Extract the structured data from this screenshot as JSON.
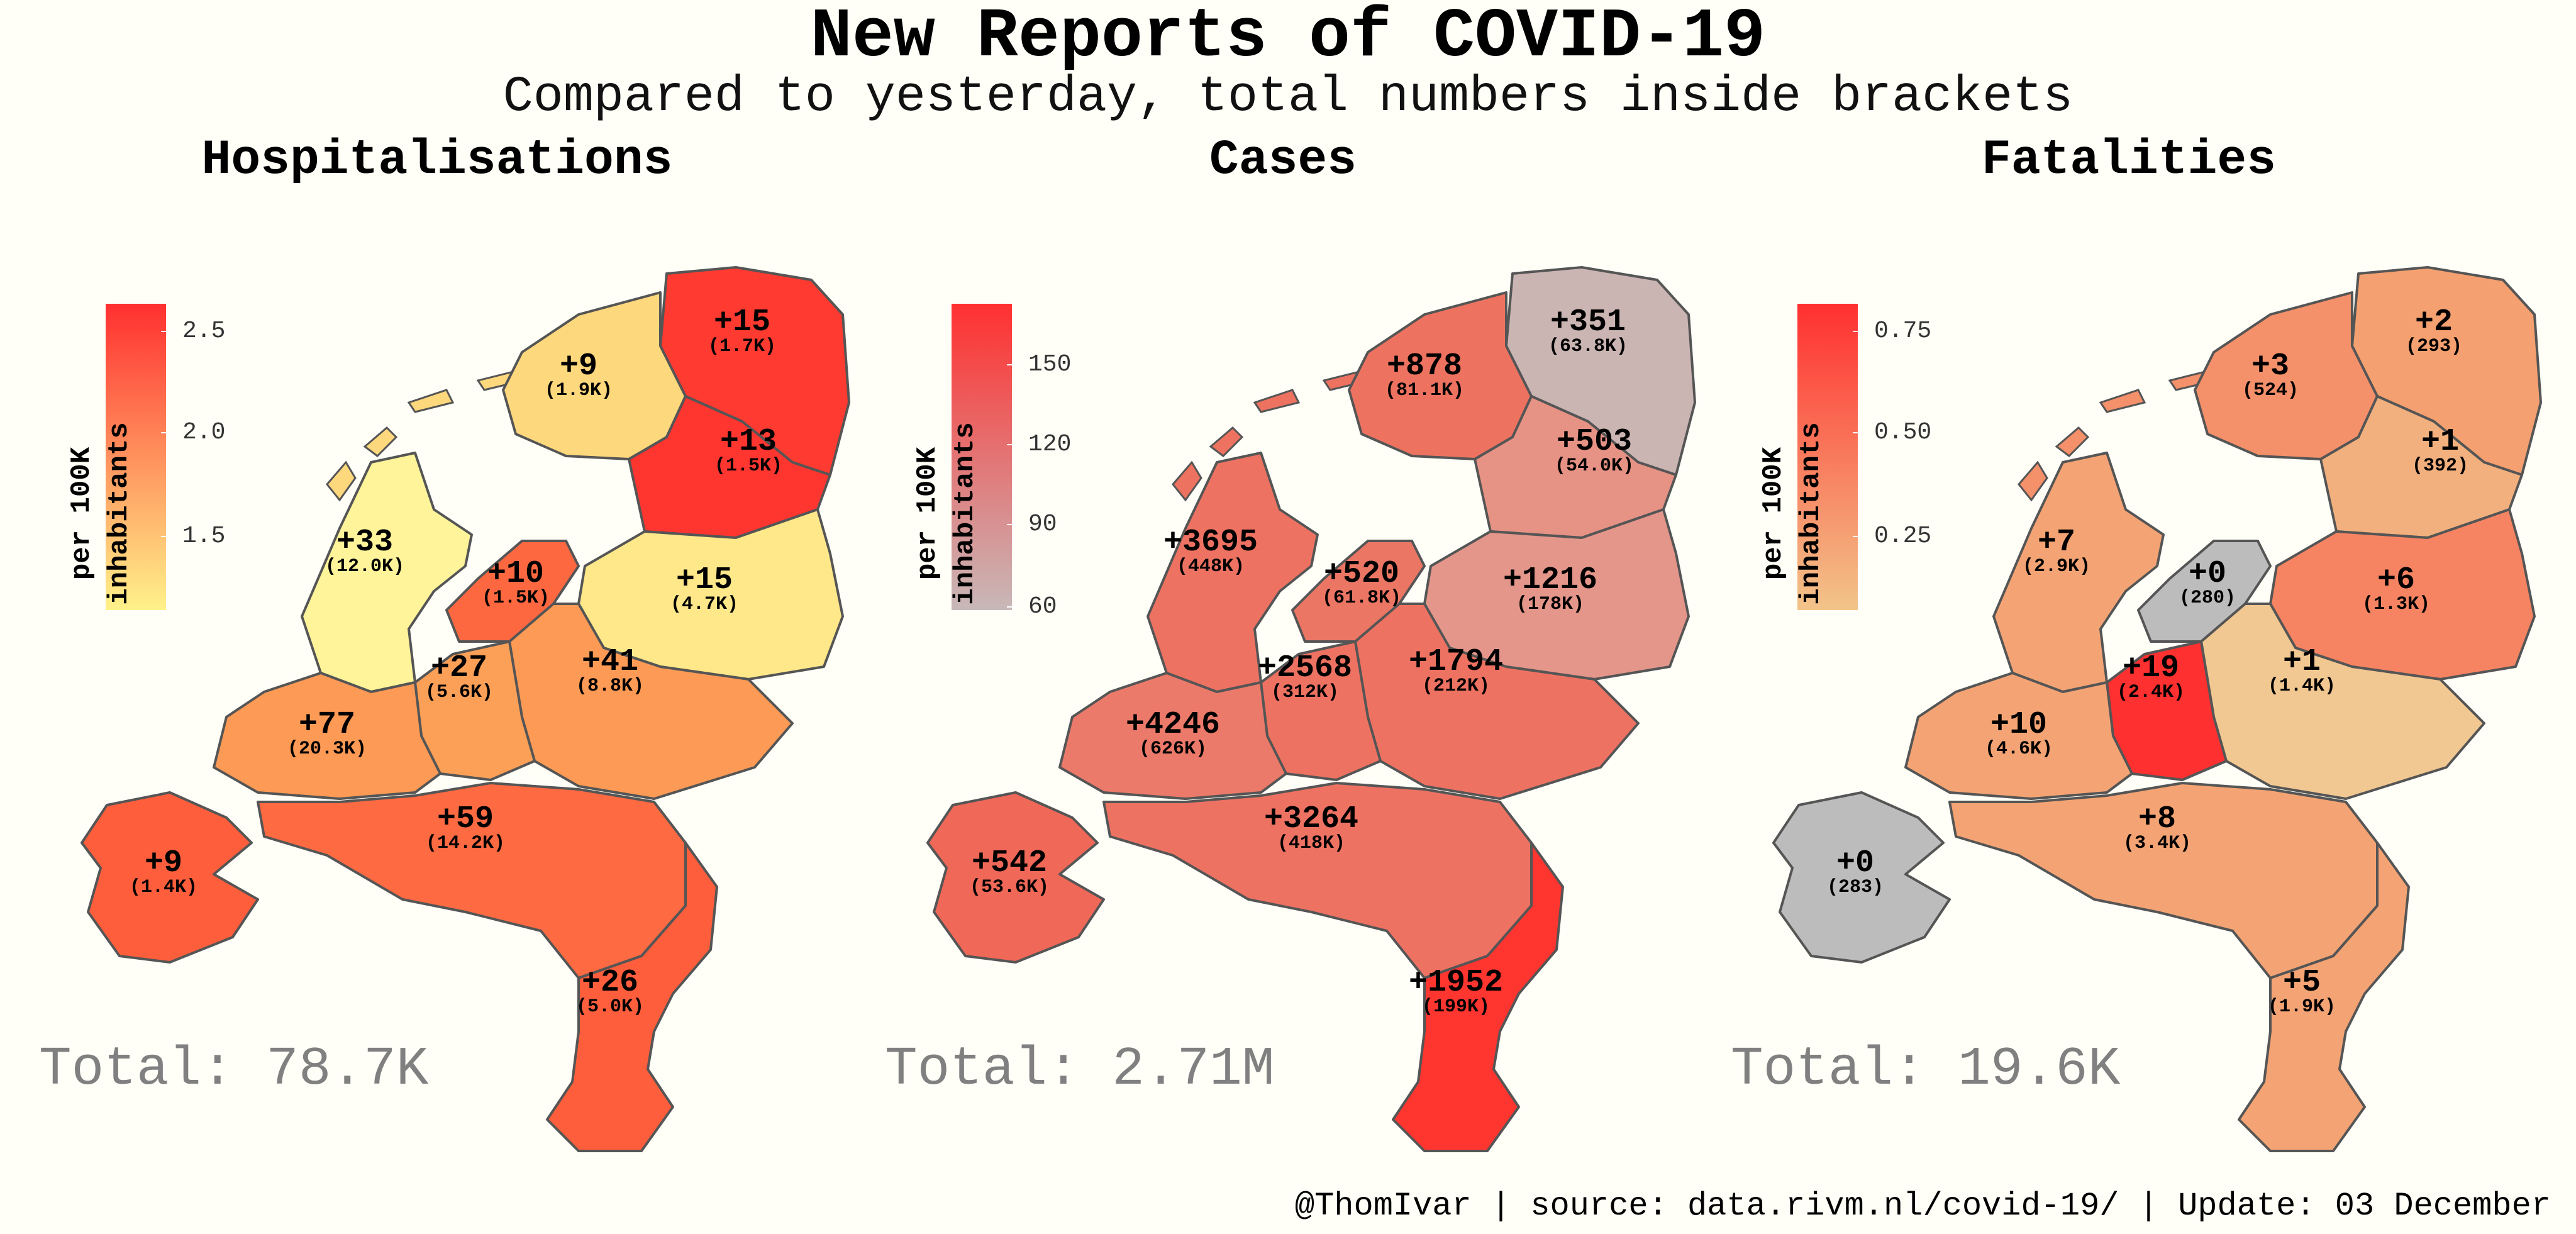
{
  "title": "New Reports of COVID-19",
  "subtitle": "Compared to yesterday, total numbers inside brackets",
  "footer": "@ThomIvar | source: data.rivm.nl/covid-19/ | Update: 03 December",
  "panels": [
    {
      "title": "Hospitalisations",
      "legend_title": "per 100K inhabitants",
      "legend_ticks": [
        "2.5",
        "2.0",
        "1.5"
      ],
      "legend_colors": [
        "#ff3030",
        "#fff28a"
      ],
      "total": "Total: 78.7K",
      "regions": [
        {
          "delta": "+15",
          "total": "(1.7K)",
          "color": "#ff3a30"
        },
        {
          "delta": "+9",
          "total": "(1.9K)",
          "color": "#fed87c"
        },
        {
          "delta": "+13",
          "total": "(1.5K)",
          "color": "#ff3530"
        },
        {
          "delta": "+33",
          "total": "(12.0K)",
          "color": "#fff49a"
        },
        {
          "delta": "+10",
          "total": "(1.5K)",
          "color": "#fe6840"
        },
        {
          "delta": "+15",
          "total": "(4.7K)",
          "color": "#ffe88a"
        },
        {
          "delta": "+41",
          "total": "(8.8K)",
          "color": "#fd9a55"
        },
        {
          "delta": "+27",
          "total": "(5.6K)",
          "color": "#fca058"
        },
        {
          "delta": "+77",
          "total": "(20.3K)",
          "color": "#fd9a55"
        },
        {
          "delta": "+59",
          "total": "(14.2K)",
          "color": "#fe6a42"
        },
        {
          "delta": "+9",
          "total": "(1.4K)",
          "color": "#fe5e3c"
        },
        {
          "delta": "+26",
          "total": "(5.0K)",
          "color": "#fe5e3c"
        }
      ]
    },
    {
      "title": "Cases",
      "legend_title": "per 100K inhabitants",
      "legend_ticks": [
        "150",
        "120",
        "90",
        "60"
      ],
      "legend_colors": [
        "#ff3030",
        "#c8b8b8"
      ],
      "total": "Total: 2.71M",
      "regions": [
        {
          "delta": "+351",
          "total": "(63.8K)",
          "color": "#cbb5b3"
        },
        {
          "delta": "+878",
          "total": "(81.1K)",
          "color": "#ee7260"
        },
        {
          "delta": "+503",
          "total": "(54.0K)",
          "color": "#e69284"
        },
        {
          "delta": "+3695",
          "total": "(448K)",
          "color": "#ee7262"
        },
        {
          "delta": "+520",
          "total": "(61.8K)",
          "color": "#ec7664"
        },
        {
          "delta": "+1216",
          "total": "(178K)",
          "color": "#e4968a"
        },
        {
          "delta": "+1794",
          "total": "(212K)",
          "color": "#ee7262"
        },
        {
          "delta": "+2568",
          "total": "(312K)",
          "color": "#ee7262"
        },
        {
          "delta": "+4246",
          "total": "(626K)",
          "color": "#ec7a6a"
        },
        {
          "delta": "+3264",
          "total": "(418K)",
          "color": "#ee7262"
        },
        {
          "delta": "+542",
          "total": "(53.6K)",
          "color": "#f06858"
        },
        {
          "delta": "+1952",
          "total": "(199K)",
          "color": "#ff3530"
        }
      ]
    },
    {
      "title": "Fatalities",
      "legend_title": "per 100K inhabitants",
      "legend_ticks": [
        "0.75",
        "0.50",
        "0.25"
      ],
      "legend_colors": [
        "#ff3030",
        "#f2c48a"
      ],
      "total": "Total: 19.6K",
      "regions": [
        {
          "delta": "+2",
          "total": "(293)",
          "color": "#f4a070"
        },
        {
          "delta": "+3",
          "total": "(524)",
          "color": "#f4906a"
        },
        {
          "delta": "+1",
          "total": "(392)",
          "color": "#f2b07e"
        },
        {
          "delta": "+7",
          "total": "(2.9K)",
          "color": "#f4a474"
        },
        {
          "delta": "+0",
          "total": "(280)",
          "color": "#bcbcbc"
        },
        {
          "delta": "+6",
          "total": "(1.3K)",
          "color": "#f68462"
        },
        {
          "delta": "+1",
          "total": "(1.4K)",
          "color": "#f2c892"
        },
        {
          "delta": "+19",
          "total": "(2.4K)",
          "color": "#ff3030"
        },
        {
          "delta": "+10",
          "total": "(4.6K)",
          "color": "#f4a474"
        },
        {
          "delta": "+8",
          "total": "(3.4K)",
          "color": "#f4a474"
        },
        {
          "delta": "+0",
          "total": "(283)",
          "color": "#bcbcbc"
        },
        {
          "delta": "+5",
          "total": "(1.9K)",
          "color": "#f4a474"
        }
      ]
    }
  ]
}
